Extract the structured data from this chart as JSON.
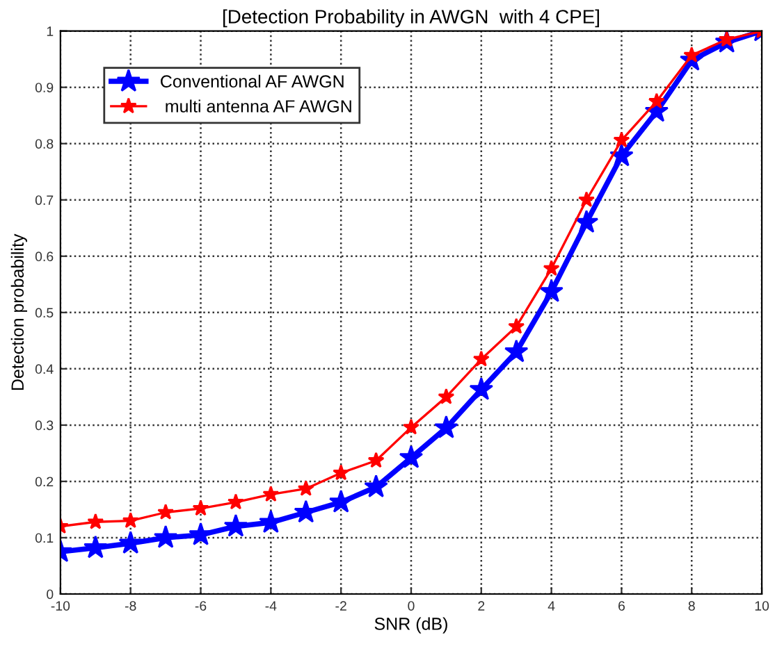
{
  "chart_data": {
    "type": "line",
    "title": "[Detection Probability in AWGN  with 4 CPE]",
    "xlabel": "SNR (dB)",
    "ylabel": "Detection probability",
    "x": [
      -10,
      -9,
      -8,
      -7,
      -6,
      -5,
      -4,
      -3,
      -2,
      -1,
      0,
      1,
      2,
      3,
      4,
      5,
      6,
      7,
      8,
      9,
      10
    ],
    "series": [
      {
        "name": "Conventional AF AWGN",
        "color": "#0000ff",
        "values": [
          0.075,
          0.082,
          0.09,
          0.1,
          0.105,
          0.12,
          0.127,
          0.145,
          0.163,
          0.19,
          0.242,
          0.295,
          0.363,
          0.43,
          0.537,
          0.66,
          0.778,
          0.857,
          0.948,
          0.98,
          1.0
        ]
      },
      {
        "name": " multi antenna AF AWGN",
        "color": "#ff0000",
        "values": [
          0.12,
          0.128,
          0.13,
          0.145,
          0.152,
          0.163,
          0.177,
          0.187,
          0.215,
          0.237,
          0.296,
          0.35,
          0.417,
          0.475,
          0.578,
          0.7,
          0.806,
          0.875,
          0.957,
          0.985,
          1.0
        ]
      }
    ],
    "xlim": [
      -10,
      10
    ],
    "xticks": [
      -10,
      -8,
      -6,
      -4,
      -2,
      0,
      2,
      4,
      6,
      8,
      10
    ],
    "ylim": [
      0,
      1
    ],
    "yticks": [
      0,
      {
        "value": 0.1,
        "label": "0.1"
      },
      {
        "value": 0.2,
        "label": "0.2"
      },
      {
        "value": 0.3,
        "label": "0.3"
      },
      {
        "value": 0.4,
        "label": "0.4"
      },
      {
        "value": 0.5,
        "label": "0.5"
      },
      {
        "value": 0.6,
        "label": "0.6"
      },
      {
        "value": 0.7,
        "label": "0.7"
      },
      {
        "value": 0.8,
        "label": "0.8"
      },
      {
        "value": 0.9,
        "label": "0.9"
      },
      1
    ],
    "grid": true,
    "legend": "top left",
    "marker": "star",
    "line_style": "solid"
  }
}
